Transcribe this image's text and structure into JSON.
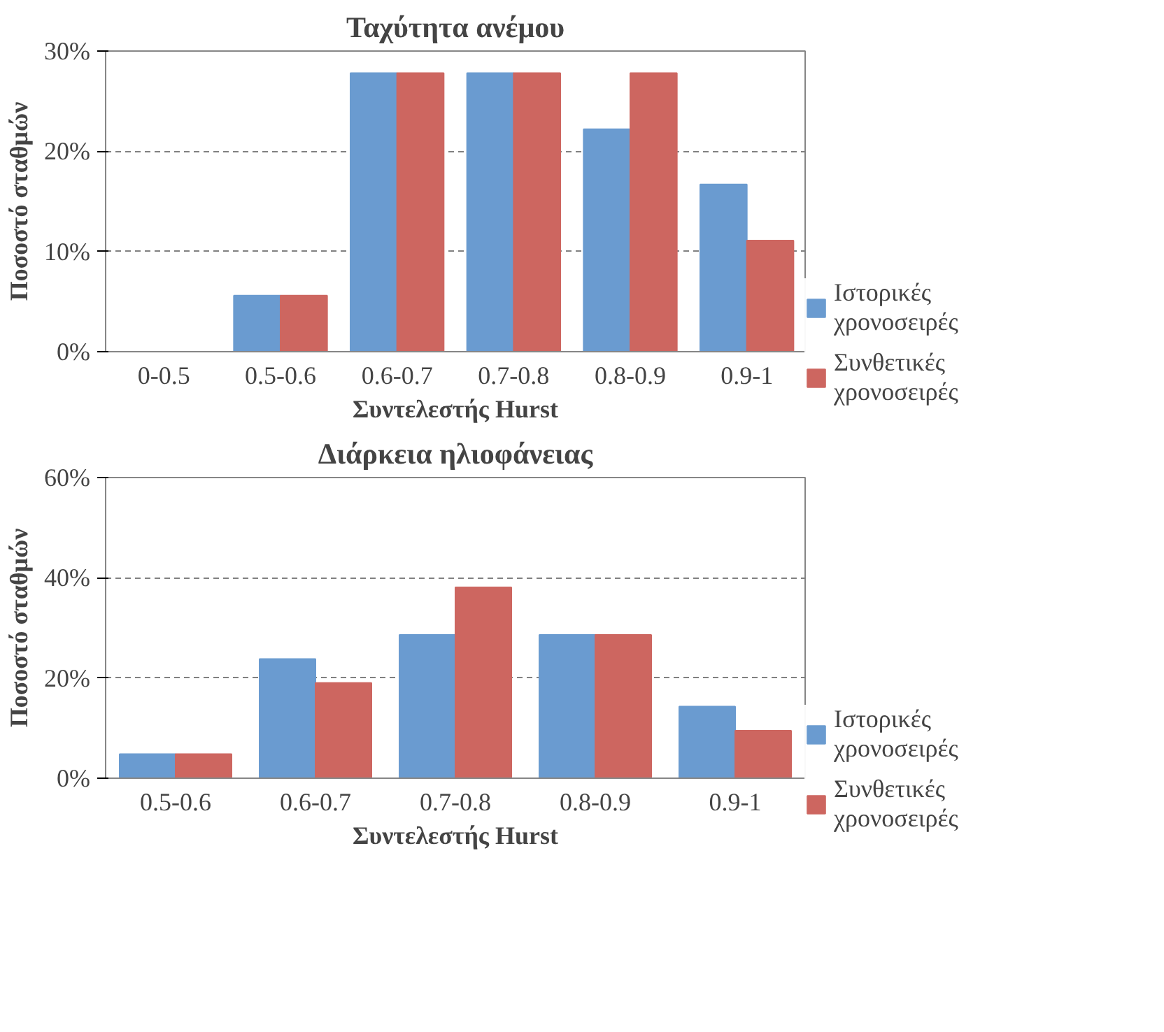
{
  "chart_data": [
    {
      "type": "bar",
      "title": "Ταχύτητα ανέμου",
      "xlabel": "Συντελεστής Hurst",
      "ylabel": "Ποσοστό σταθμών",
      "categories": [
        "0-0.5",
        "0.5-0.6",
        "0.6-0.7",
        "0.7-0.8",
        "0.8-0.9",
        "0.9-1"
      ],
      "series": [
        {
          "name": "Ιστορικές χρονοσειρές",
          "color": "#6a9bd0",
          "values": [
            0,
            5.6,
            27.8,
            27.8,
            22.2,
            16.7
          ]
        },
        {
          "name": "Συνθετικές χρονοσειρές",
          "color": "#cd6660",
          "values": [
            0,
            5.6,
            27.8,
            27.8,
            27.8,
            11.1
          ]
        }
      ],
      "ylim": [
        0,
        30
      ],
      "yticks": [
        {
          "value": 0,
          "label": "0%"
        },
        {
          "value": 10,
          "label": "10%"
        },
        {
          "value": 20,
          "label": "20%"
        },
        {
          "value": 30,
          "label": "30%"
        }
      ],
      "grid": "y",
      "legend": "right"
    },
    {
      "type": "bar",
      "title": "Διάρκεια ηλιοφάνειας",
      "xlabel": "Συντελεστής Hurst",
      "ylabel": "Ποσοστό σταθμών",
      "categories": [
        "0.5-0.6",
        "0.6-0.7",
        "0.7-0.8",
        "0.8-0.9",
        "0.9-1"
      ],
      "series": [
        {
          "name": "Ιστορικές χρονοσειρές",
          "color": "#6a9bd0",
          "values": [
            4.8,
            23.8,
            28.6,
            28.6,
            14.3
          ]
        },
        {
          "name": "Συνθετικές χρονοσειρές",
          "color": "#cd6660",
          "values": [
            4.8,
            19.0,
            38.1,
            28.6,
            9.5
          ]
        }
      ],
      "ylim": [
        0,
        60
      ],
      "yticks": [
        {
          "value": 0,
          "label": "0%"
        },
        {
          "value": 20,
          "label": "20%"
        },
        {
          "value": 40,
          "label": "40%"
        },
        {
          "value": 60,
          "label": "60%"
        }
      ],
      "grid": "y",
      "legend": "right"
    }
  ]
}
